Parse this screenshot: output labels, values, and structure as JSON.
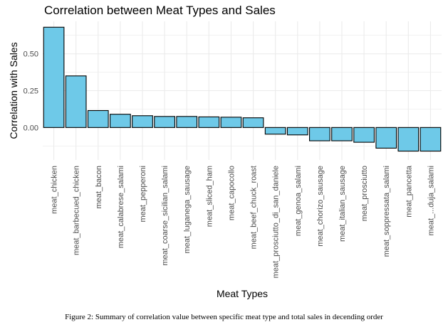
{
  "chart_data": {
    "type": "bar",
    "title": "Correlation between Meat Types and Sales",
    "xlabel": "Meat Types",
    "ylabel": "Correlation with Sales",
    "categories": [
      "meat_chicken",
      "meat_barbecued_chicken",
      "meat_bacon",
      "meat_calabrese_salami",
      "meat_pepperoni",
      "meat_coarse_sicilian_salami",
      "meat_luganega_sausage",
      "meat_sliced_ham",
      "meat_capocollo",
      "meat_beef_chuck_roast",
      "meat_prosciutto_di_san_daniele",
      "meat_genoa_salami",
      "meat_chorizo_sausage",
      "meat_italian_sausage",
      "meat_prosciutto",
      "meat_soppressata_salami",
      "meat_pancetta",
      "meat_...duja_salami"
    ],
    "values": [
      0.68,
      0.35,
      0.115,
      0.09,
      0.08,
      0.075,
      0.075,
      0.072,
      0.07,
      0.066,
      -0.045,
      -0.05,
      -0.09,
      -0.09,
      -0.1,
      -0.14,
      -0.16,
      -0.16
    ],
    "yticks": [
      0.0,
      0.25,
      0.5
    ],
    "ytick_labels": [
      "0.00",
      "0.25",
      "0.50"
    ],
    "ylim": [
      -0.22,
      0.72
    ],
    "grid": true,
    "bar_color": "#6ec9e8",
    "bar_border": "#000000",
    "grid_color": "#ebebeb"
  },
  "caption": "Figure 2: Summary of correlation value between specific meat type and total sales in decending order"
}
